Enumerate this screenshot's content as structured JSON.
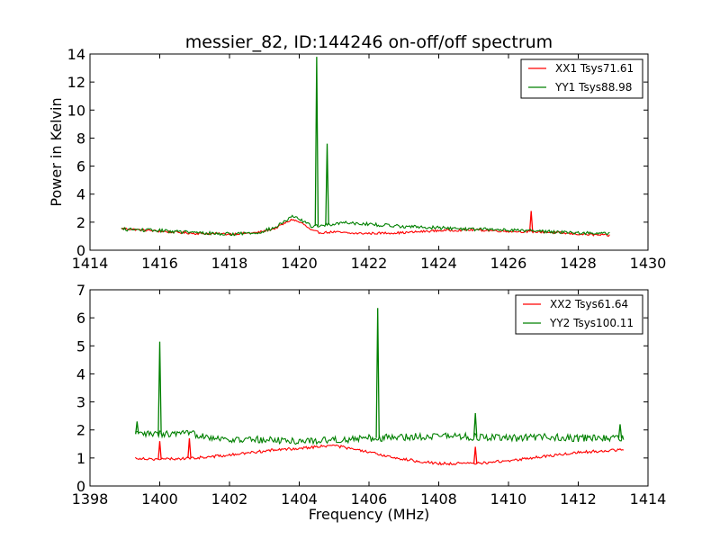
{
  "chart_data": [
    {
      "type": "line",
      "title": "messier_82, ID:144246 on-off/off spectrum",
      "xlabel": "",
      "ylabel": "Power in Kelvin",
      "xlim": [
        1414,
        1430
      ],
      "ylim": [
        0,
        14
      ],
      "xticks": [
        1414,
        1416,
        1418,
        1420,
        1422,
        1424,
        1426,
        1428,
        1430
      ],
      "yticks": [
        0,
        2,
        4,
        6,
        8,
        10,
        12,
        14
      ],
      "legend_position": "top-right",
      "series": [
        {
          "name": "XX1 Tsys71.61",
          "color": "#ff0000",
          "x_range": [
            1414.9,
            1428.9
          ],
          "noise": 0.08,
          "baseline": [
            [
              1414.9,
              1.55
            ],
            [
              1416.0,
              1.35
            ],
            [
              1417.0,
              1.2
            ],
            [
              1418.0,
              1.15
            ],
            [
              1418.8,
              1.25
            ],
            [
              1419.3,
              1.55
            ],
            [
              1419.8,
              2.2
            ],
            [
              1420.1,
              1.9
            ],
            [
              1420.35,
              1.4
            ],
            [
              1420.6,
              1.25
            ],
            [
              1421.0,
              1.3
            ],
            [
              1421.5,
              1.2
            ],
            [
              1422.0,
              1.2
            ],
            [
              1423.0,
              1.25
            ],
            [
              1424.0,
              1.4
            ],
            [
              1425.0,
              1.45
            ],
            [
              1426.0,
              1.35
            ],
            [
              1427.0,
              1.3
            ],
            [
              1428.0,
              1.15
            ],
            [
              1428.9,
              1.05
            ]
          ],
          "spikes": [
            [
              1426.65,
              2.8
            ]
          ]
        },
        {
          "name": "YY1 Tsys88.98",
          "color": "#008000",
          "x_range": [
            1414.9,
            1428.9
          ],
          "noise": 0.12,
          "baseline": [
            [
              1414.9,
              1.5
            ],
            [
              1416.0,
              1.4
            ],
            [
              1417.0,
              1.25
            ],
            [
              1418.0,
              1.15
            ],
            [
              1418.8,
              1.25
            ],
            [
              1419.3,
              1.6
            ],
            [
              1419.8,
              2.4
            ],
            [
              1420.1,
              2.1
            ],
            [
              1420.35,
              1.7
            ],
            [
              1420.9,
              1.85
            ],
            [
              1421.3,
              2.0
            ],
            [
              1422.0,
              1.85
            ],
            [
              1423.0,
              1.7
            ],
            [
              1424.0,
              1.6
            ],
            [
              1425.0,
              1.5
            ],
            [
              1426.0,
              1.45
            ],
            [
              1427.0,
              1.35
            ],
            [
              1428.0,
              1.25
            ],
            [
              1428.9,
              1.2
            ]
          ],
          "spikes": [
            [
              1420.5,
              13.8
            ],
            [
              1420.8,
              7.6
            ]
          ]
        }
      ]
    },
    {
      "type": "line",
      "title": "",
      "xlabel": "Frequency (MHz)",
      "ylabel": "",
      "xlim": [
        1398,
        1414
      ],
      "ylim": [
        0,
        7
      ],
      "xticks": [
        1398,
        1400,
        1402,
        1404,
        1406,
        1408,
        1410,
        1412,
        1414
      ],
      "yticks": [
        0,
        1,
        2,
        3,
        4,
        5,
        6,
        7
      ],
      "legend_position": "top-right",
      "series": [
        {
          "name": "XX2 Tsys61.64",
          "color": "#ff0000",
          "x_range": [
            1399.3,
            1413.3
          ],
          "noise": 0.05,
          "baseline": [
            [
              1399.3,
              1.0
            ],
            [
              1400.0,
              0.95
            ],
            [
              1401.0,
              1.0
            ],
            [
              1402.0,
              1.1
            ],
            [
              1403.0,
              1.25
            ],
            [
              1404.0,
              1.35
            ],
            [
              1404.5,
              1.4
            ],
            [
              1405.0,
              1.45
            ],
            [
              1406.0,
              1.2
            ],
            [
              1407.0,
              0.95
            ],
            [
              1408.0,
              0.8
            ],
            [
              1409.0,
              0.8
            ],
            [
              1410.0,
              0.9
            ],
            [
              1411.0,
              1.05
            ],
            [
              1412.0,
              1.2
            ],
            [
              1413.3,
              1.3
            ]
          ],
          "spikes": [
            [
              1400.0,
              1.6
            ],
            [
              1400.85,
              1.7
            ],
            [
              1409.05,
              1.4
            ]
          ]
        },
        {
          "name": "YY2 Tsys100.11",
          "color": "#008000",
          "x_range": [
            1399.3,
            1413.3
          ],
          "noise": 0.13,
          "baseline": [
            [
              1399.3,
              1.85
            ],
            [
              1400.0,
              1.85
            ],
            [
              1401.0,
              1.85
            ],
            [
              1402.0,
              1.65
            ],
            [
              1403.0,
              1.65
            ],
            [
              1404.0,
              1.6
            ],
            [
              1405.0,
              1.65
            ],
            [
              1406.0,
              1.7
            ],
            [
              1407.0,
              1.75
            ],
            [
              1408.0,
              1.8
            ],
            [
              1409.0,
              1.75
            ],
            [
              1410.0,
              1.7
            ],
            [
              1411.0,
              1.75
            ],
            [
              1412.0,
              1.7
            ],
            [
              1413.3,
              1.7
            ]
          ],
          "spikes": [
            [
              1399.35,
              2.3
            ],
            [
              1400.0,
              5.15
            ],
            [
              1406.25,
              6.35
            ],
            [
              1409.05,
              2.6
            ],
            [
              1413.2,
              2.2
            ]
          ]
        }
      ]
    }
  ]
}
